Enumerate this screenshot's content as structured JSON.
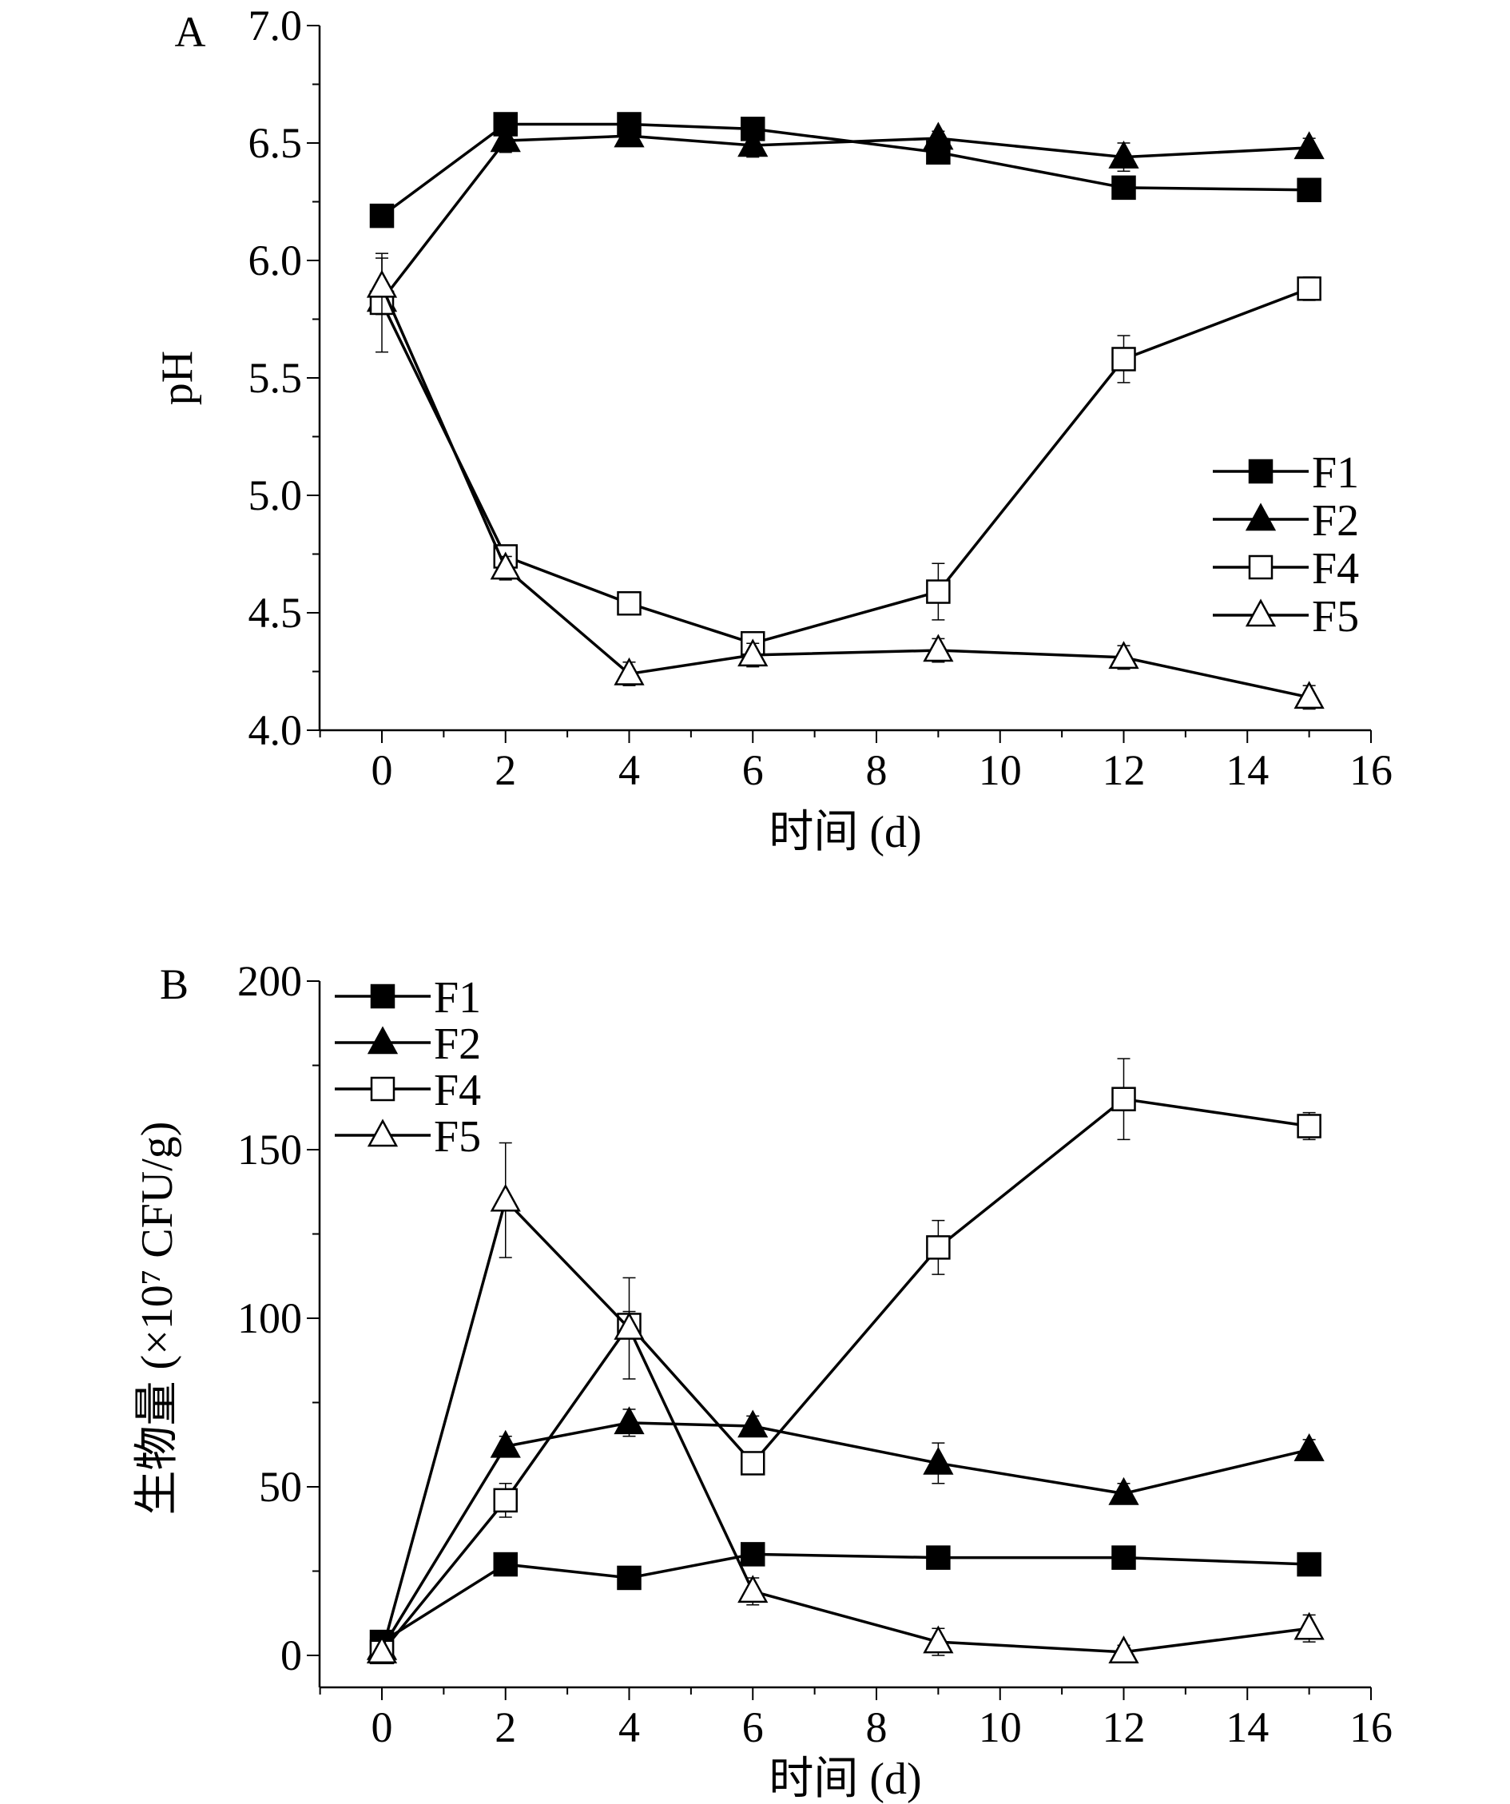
{
  "chart_data": [
    {
      "type": "line",
      "panel_label": "A",
      "title": "",
      "xlabel": "时间 (d)",
      "ylabel": "pH",
      "xlim": [
        -1,
        16
      ],
      "ylim": [
        4.0,
        7.0
      ],
      "xticks": [
        0,
        2,
        4,
        6,
        8,
        10,
        12,
        14,
        16
      ],
      "yticks": [
        4.0,
        4.5,
        5.0,
        5.5,
        6.0,
        6.5,
        7.0
      ],
      "ytick_labels": [
        "4.0",
        "4.5",
        "5.0",
        "5.5",
        "6.0",
        "6.5",
        "7.0"
      ],
      "legend_position": "center-right",
      "x": [
        0,
        2,
        4,
        6,
        9,
        12,
        15
      ],
      "series": [
        {
          "name": "F1",
          "marker": "filled-square",
          "values": [
            6.19,
            6.58,
            6.58,
            6.56,
            6.46,
            6.31,
            6.3
          ],
          "errors": [
            0.01,
            0.01,
            0.01,
            0.01,
            0.02,
            0.02,
            0.01
          ]
        },
        {
          "name": "F2",
          "marker": "filled-triangle",
          "values": [
            5.83,
            6.51,
            6.53,
            6.49,
            6.52,
            6.44,
            6.48
          ],
          "errors": [
            0.02,
            0.05,
            0.04,
            0.05,
            0.03,
            0.06,
            0.04
          ]
        },
        {
          "name": "F4",
          "marker": "open-square",
          "values": [
            5.82,
            4.74,
            4.54,
            4.37,
            4.59,
            5.58,
            5.88
          ],
          "errors": [
            0.21,
            0.03,
            0.03,
            0.03,
            0.12,
            0.1,
            0.05
          ]
        },
        {
          "name": "F5",
          "marker": "open-triangle",
          "values": [
            5.89,
            4.69,
            4.24,
            4.32,
            4.34,
            4.31,
            4.14
          ],
          "errors": [
            0.12,
            0.05,
            0.05,
            0.05,
            0.05,
            0.05,
            0.05
          ]
        }
      ]
    },
    {
      "type": "line",
      "panel_label": "B",
      "title": "",
      "xlabel": "时间 (d)",
      "ylabel": "生物量 (×10⁷ CFU/g)",
      "xlim": [
        -1,
        16
      ],
      "ylim": [
        -7,
        200
      ],
      "xticks": [
        0,
        2,
        4,
        6,
        8,
        10,
        12,
        14,
        16
      ],
      "yticks": [
        0,
        50,
        100,
        150,
        200
      ],
      "ytick_labels": [
        "0",
        "50",
        "100",
        "150",
        "200"
      ],
      "legend_position": "top-left",
      "x": [
        0,
        2,
        4,
        6,
        9,
        12,
        15
      ],
      "series": [
        {
          "name": "F1",
          "marker": "filled-square",
          "values": [
            4,
            27,
            23,
            30,
            29,
            29,
            27
          ],
          "errors": [
            1,
            2,
            2,
            2,
            2,
            2,
            2
          ]
        },
        {
          "name": "F2",
          "marker": "filled-triangle",
          "values": [
            2,
            62,
            69,
            68,
            57,
            48,
            61
          ],
          "errors": [
            1,
            3,
            4,
            3,
            6,
            3,
            3
          ]
        },
        {
          "name": "F4",
          "marker": "open-square",
          "values": [
            1,
            46,
            98,
            57,
            121,
            165,
            157
          ],
          "errors": [
            1,
            5,
            4,
            3,
            8,
            12,
            4
          ]
        },
        {
          "name": "F5",
          "marker": "open-triangle",
          "values": [
            1,
            135,
            97,
            19,
            4,
            1,
            8
          ],
          "errors": [
            1,
            17,
            15,
            4,
            4,
            2,
            4
          ]
        }
      ]
    }
  ]
}
